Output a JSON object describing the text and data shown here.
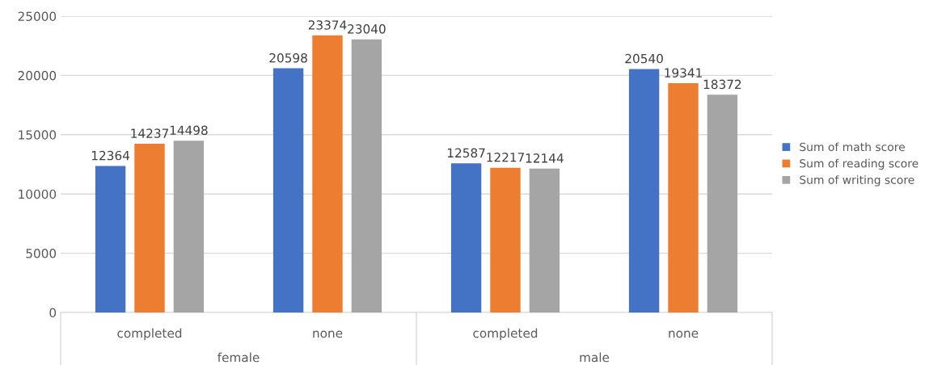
{
  "chart_data": {
    "type": "bar",
    "categories": [
      "completed",
      "none",
      "completed",
      "none"
    ],
    "series": [
      {
        "name": "Sum of math score",
        "color": "#4472c4",
        "values": [
          12364,
          20598,
          12587,
          20540
        ]
      },
      {
        "name": "Sum of reading score",
        "color": "#ed7d31",
        "values": [
          14237,
          23374,
          12217,
          19341
        ]
      },
      {
        "name": "Sum of writing score",
        "color": "#a5a5a5",
        "values": [
          14498,
          23040,
          12144,
          18372
        ]
      }
    ],
    "annotations": [
      "female",
      "male"
    ],
    "ylim": [
      0,
      25000
    ],
    "yticks": [
      0,
      5000,
      10000,
      15000,
      20000,
      25000
    ],
    "grid": "y",
    "legend": "right",
    "data_labels": true
  }
}
